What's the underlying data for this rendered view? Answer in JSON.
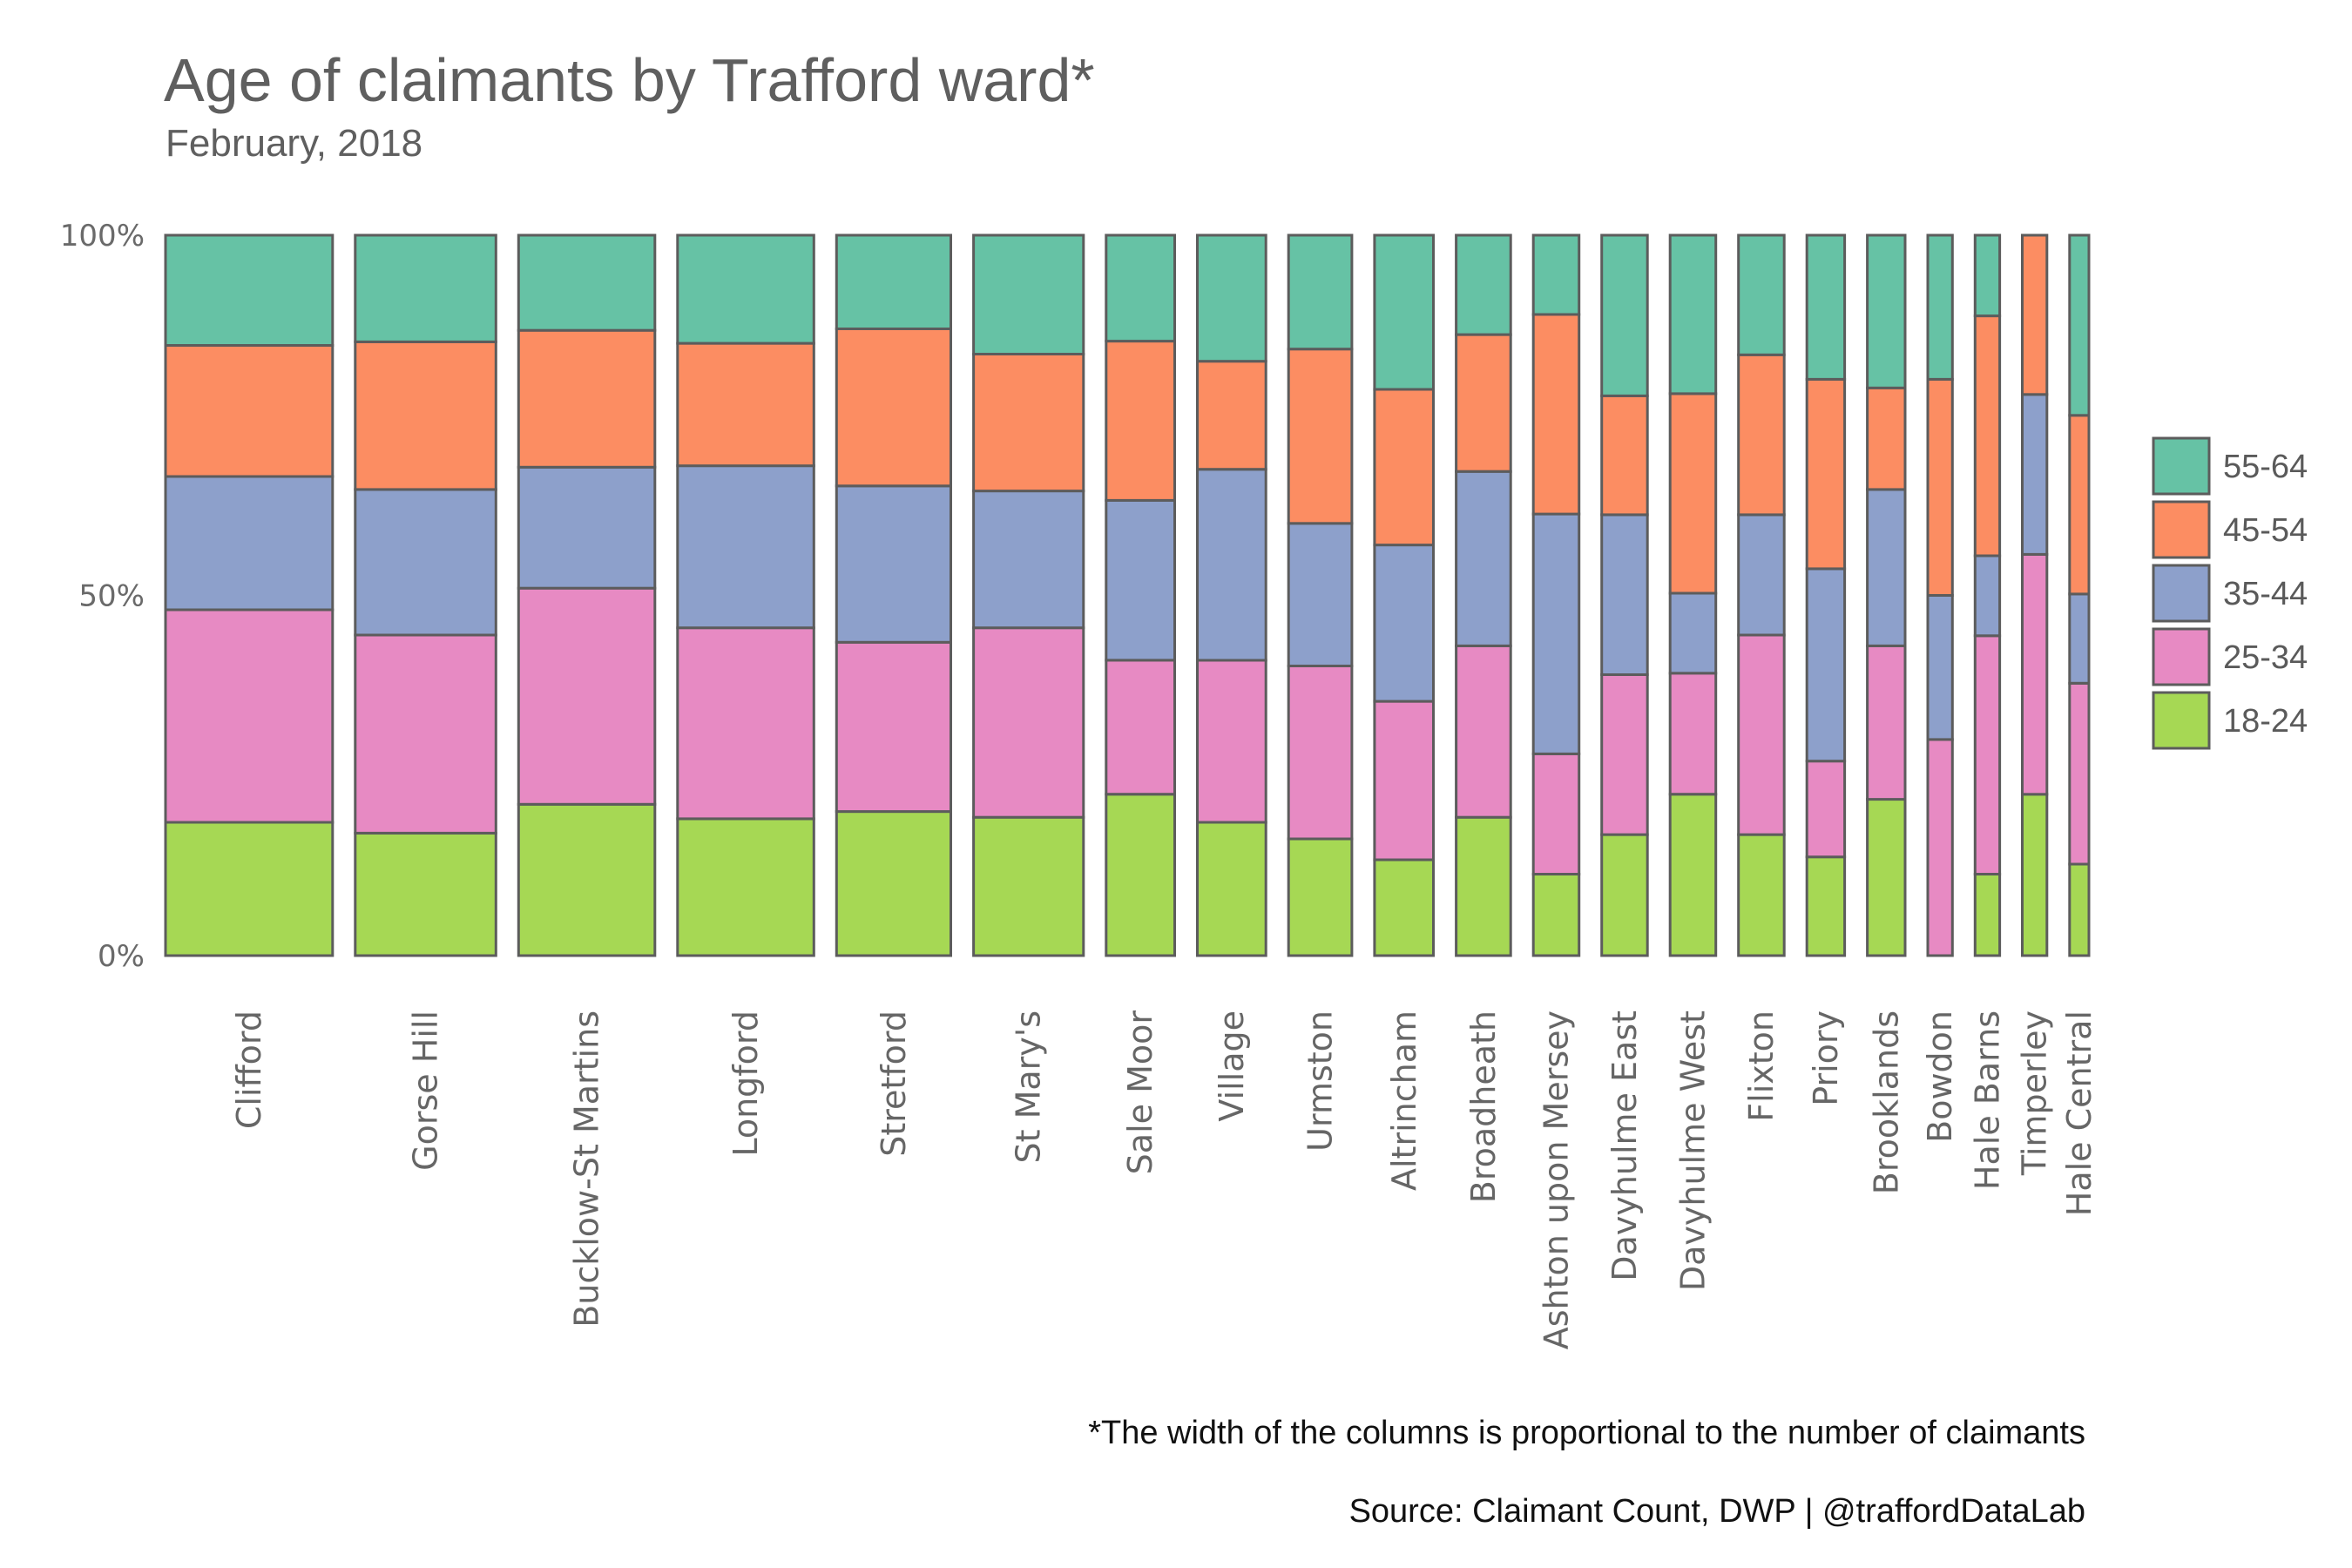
{
  "chart_data": {
    "type": "bar",
    "title": "Age of claimants by Trafford ward*",
    "subtitle": "February, 2018",
    "y_ticks": [
      "0%",
      "50%",
      "100%"
    ],
    "ylim": [
      0,
      100
    ],
    "grid": false,
    "legend_position": "right",
    "categories": [
      "Clifford",
      "Gorse Hill",
      "Bucklow-St Martins",
      "Longford",
      "Stretford",
      "St Mary's",
      "Sale Moor",
      "Village",
      "Urmston",
      "Altrincham",
      "Broadheath",
      "Ashton upon Mersey",
      "Davyhulme East",
      "Davyhulme West",
      "Flixton",
      "Priory",
      "Brooklands",
      "Bowdon",
      "Hale Barns",
      "Timperley",
      "Hale Central"
    ],
    "relative_widths": [
      190,
      160,
      155,
      155,
      130,
      125,
      78,
      78,
      72,
      67,
      62,
      52,
      52,
      52,
      52,
      43,
      43,
      28,
      28,
      28,
      22
    ],
    "series": [
      {
        "name": "18-24",
        "color": "#a6d854",
        "values": [
          18.5,
          17,
          21,
          19,
          20,
          19.2,
          22.4,
          18.5,
          16.2,
          13.3,
          19.2,
          11.3,
          16.8,
          22.4,
          16.8,
          13.7,
          21.7,
          0,
          11.3,
          22.4,
          12.7
        ]
      },
      {
        "name": "25-34",
        "color": "#e78ac3",
        "values": [
          29.5,
          27.5,
          30,
          26.5,
          23.5,
          26.3,
          18.6,
          22.5,
          24,
          22,
          23.8,
          16.7,
          22.2,
          16.8,
          27.7,
          13.3,
          21.3,
          30,
          33.1,
          33.3,
          25.1
        ]
      },
      {
        "name": "35-44",
        "color": "#8da0cb",
        "values": [
          18.5,
          20.2,
          16.8,
          22.5,
          21.7,
          19,
          22.2,
          26.5,
          19.8,
          21.7,
          24.2,
          33.3,
          22.2,
          11.1,
          16.7,
          26.7,
          21.7,
          20,
          11.1,
          22.2,
          12.4
        ]
      },
      {
        "name": "45-54",
        "color": "#fc8d62",
        "values": [
          18.2,
          20.5,
          19,
          17,
          21.8,
          19,
          22.1,
          15,
          24.2,
          21.6,
          19,
          27.7,
          16.5,
          27.7,
          22.2,
          26.3,
          14.1,
          30,
          33.3,
          22.1,
          24.8
        ]
      },
      {
        "name": "55-64",
        "color": "#66c2a5",
        "values": [
          15.3,
          14.8,
          13.2,
          15,
          13,
          16.5,
          14.7,
          17.5,
          15.8,
          21.4,
          13.8,
          11,
          22.3,
          22,
          16.6,
          20,
          21.2,
          20,
          11.2,
          0,
          25
        ]
      }
    ]
  },
  "captions": {
    "note": "*The width of the columns is proportional to the number of claimants",
    "source": "Source: Claimant Count, DWP  |  @traffordDataLab"
  }
}
